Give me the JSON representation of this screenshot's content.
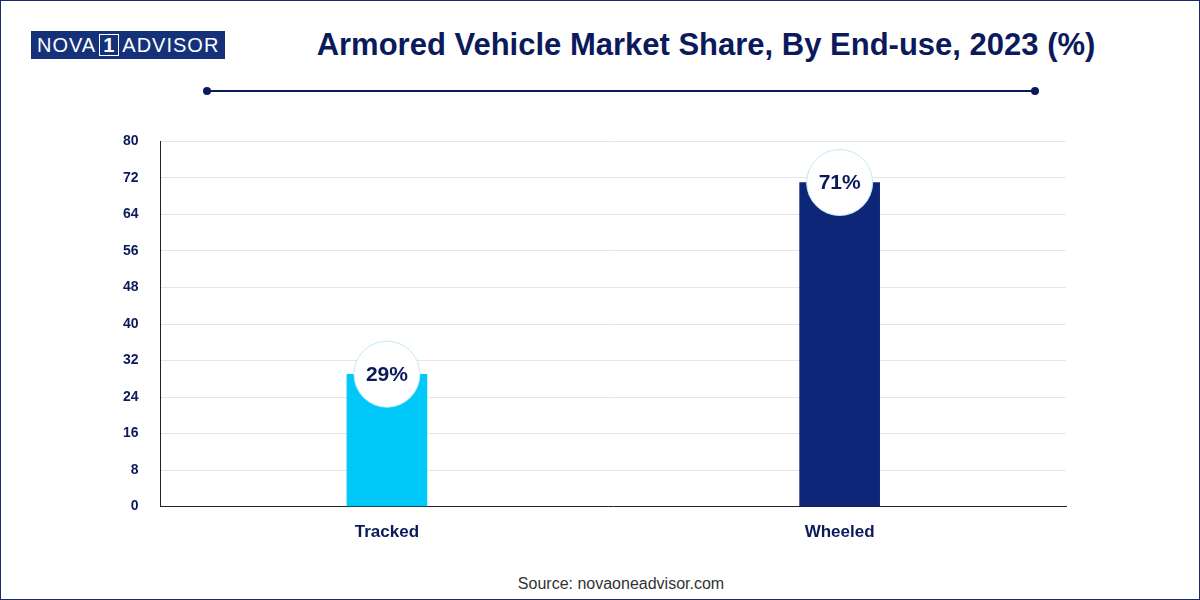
{
  "chart_data": {
    "type": "bar",
    "title": "Armored Vehicle Market Share, By End-use, 2023 (%)",
    "categories": [
      "Tracked",
      "Wheeled"
    ],
    "values": [
      29,
      71
    ],
    "value_labels": [
      "29%",
      "71%"
    ],
    "colors": [
      "#00c8f8",
      "#0d2677"
    ],
    "ylim": [
      0,
      80
    ],
    "yticks": [
      0,
      8,
      16,
      24,
      32,
      40,
      48,
      56,
      64,
      72,
      80
    ],
    "grid": true,
    "data_labels": true
  },
  "brand": {
    "left": "NOVA",
    "mark": "1",
    "right": "ADVISOR"
  },
  "source": "Source: novaoneadvisor.com"
}
